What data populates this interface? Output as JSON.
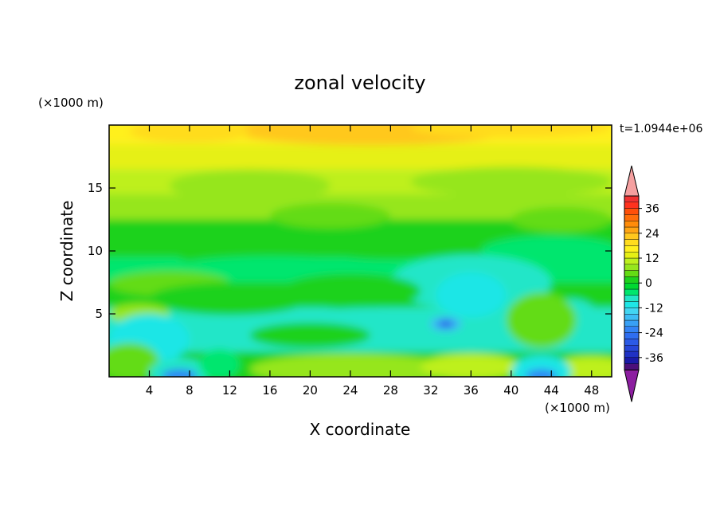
{
  "chart_data": {
    "type": "heatmap",
    "title": "zonal velocity",
    "xlabel": "X coordinate",
    "ylabel": "Z coordinate",
    "x_unit": "(×1000 m)",
    "y_unit": "(×1000 m)",
    "time_label": "t=1.0944e+06",
    "xlim": [
      0,
      50
    ],
    "ylim": [
      0,
      20
    ],
    "x_ticks": [
      4,
      8,
      12,
      16,
      20,
      24,
      28,
      32,
      36,
      40,
      44,
      48
    ],
    "y_ticks": [
      5,
      10,
      15
    ],
    "colorbar": {
      "levels": [
        -42,
        -39,
        -36,
        -33,
        -30,
        -27,
        -24,
        -21,
        -18,
        -15,
        -12,
        -9,
        -6,
        -3,
        0,
        3,
        6,
        9,
        12,
        15,
        18,
        21,
        24,
        27,
        30,
        33,
        36,
        39,
        42
      ],
      "colors": [
        "#4b0f7a",
        "#1a1aa8",
        "#1f31c4",
        "#2646d8",
        "#2b5ae6",
        "#2f6ef0",
        "#3383f5",
        "#38a0f5",
        "#3dbdf5",
        "#42d6f2",
        "#1ee6e6",
        "#22e6c8",
        "#00e66e",
        "#00d832",
        "#1ed21e",
        "#64dc14",
        "#96e61e",
        "#bef01e",
        "#e6f014",
        "#fff01e",
        "#ffdc1e",
        "#ffc81e",
        "#ffa514",
        "#ff8c0a",
        "#ff6e0a",
        "#ff500a",
        "#ff321e",
        "#f03232"
      ],
      "under_color": "#8c1ea0",
      "over_color": "#f5a0a0",
      "tick_labels": [
        "-36",
        "-24",
        "-12",
        "0",
        "12",
        "24",
        "36"
      ]
    },
    "grid": false
  }
}
